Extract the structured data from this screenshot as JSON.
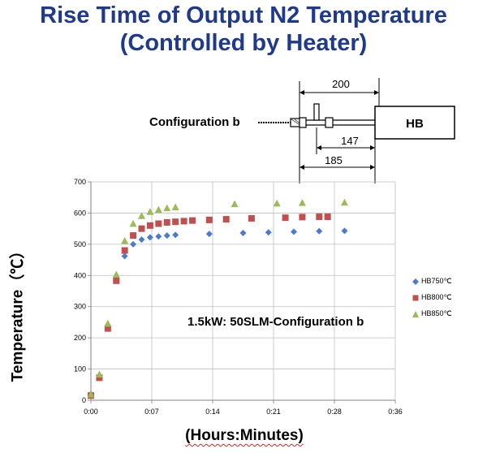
{
  "title": {
    "line1": "Rise Time of Output N2 Temperature",
    "line2": "(Controlled by Heater)"
  },
  "diagram": {
    "config_label": "Configuration b",
    "box_label": "HB",
    "dims": [
      "200",
      "147",
      "185"
    ]
  },
  "chart_data": {
    "type": "scatter",
    "annotation": "1.5kW: 50SLM-Configuration b",
    "xlabel": "(Hours:Minutes)",
    "ylabel": "Temperature（℃）",
    "xlim": [
      0,
      36
    ],
    "ylim": [
      0,
      700
    ],
    "xticks": [
      "0:00",
      "0:07",
      "0:14",
      "0:21",
      "0:28",
      "0:36"
    ],
    "yticks": [
      "0",
      "100",
      "200",
      "300",
      "400",
      "500",
      "600",
      "700"
    ],
    "grid": true,
    "legend_position": "right",
    "series": [
      {
        "name": "HB750℃",
        "color": "#4a7bd0",
        "marker": "diamond",
        "points": [
          [
            0,
            20
          ],
          [
            1,
            78
          ],
          [
            2,
            240
          ],
          [
            3,
            395
          ],
          [
            4,
            462
          ],
          [
            5,
            500
          ],
          [
            6,
            515
          ],
          [
            7,
            522
          ],
          [
            8,
            525
          ],
          [
            9,
            528
          ],
          [
            10,
            530
          ],
          [
            14,
            533
          ],
          [
            18,
            536
          ],
          [
            21,
            538
          ],
          [
            24,
            540
          ],
          [
            27,
            542
          ],
          [
            30,
            543
          ]
        ]
      },
      {
        "name": "HB800℃",
        "color": "#c0504d",
        "marker": "square",
        "points": [
          [
            0,
            15
          ],
          [
            1,
            72
          ],
          [
            2,
            230
          ],
          [
            3,
            383
          ],
          [
            4,
            480
          ],
          [
            5,
            528
          ],
          [
            6,
            550
          ],
          [
            7,
            560
          ],
          [
            8,
            566
          ],
          [
            9,
            570
          ],
          [
            10,
            572
          ],
          [
            11,
            574
          ],
          [
            12,
            576
          ],
          [
            14,
            578
          ],
          [
            16,
            580
          ],
          [
            19,
            583
          ],
          [
            23,
            585
          ],
          [
            25,
            587
          ],
          [
            27,
            588
          ],
          [
            28,
            588
          ]
        ]
      },
      {
        "name": "HB850℃",
        "color": "#9bbb59",
        "marker": "triangle",
        "points": [
          [
            0,
            18
          ],
          [
            1,
            82
          ],
          [
            2,
            245
          ],
          [
            3,
            402
          ],
          [
            4,
            510
          ],
          [
            5,
            565
          ],
          [
            6,
            590
          ],
          [
            7,
            603
          ],
          [
            8,
            610
          ],
          [
            9,
            615
          ],
          [
            10,
            618
          ],
          [
            17,
            628
          ],
          [
            22,
            630
          ],
          [
            25,
            632
          ],
          [
            30,
            633
          ]
        ]
      }
    ]
  }
}
